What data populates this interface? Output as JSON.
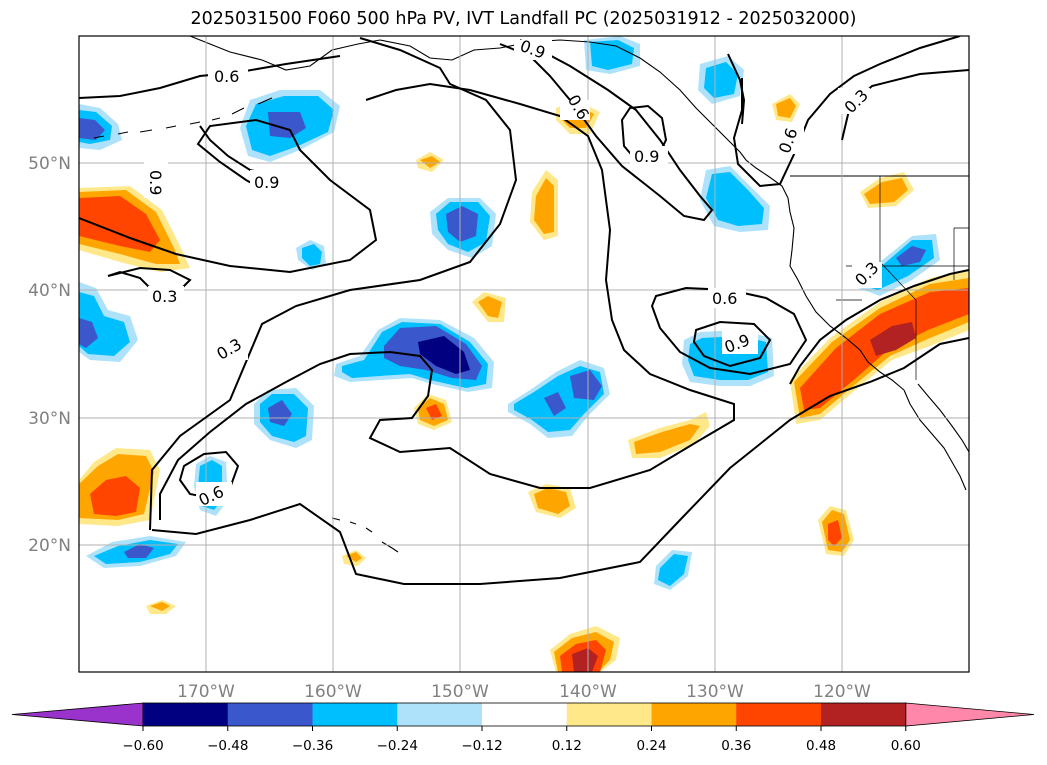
{
  "title": "2025031500 F060 500 hPa PV, IVT Landfall PC (2025031912 - 2025032000)",
  "map": {
    "projection": "PlateCarree",
    "extent": {
      "lon_min": -180,
      "lon_max": -110,
      "lat_min": 10,
      "lat_max": 60
    },
    "gridlines": true,
    "lat_ticks": [
      {
        "value": 20,
        "label": "20°N"
      },
      {
        "value": 30,
        "label": "30°N"
      },
      {
        "value": 40,
        "label": "40°N"
      },
      {
        "value": 50,
        "label": "50°N"
      }
    ],
    "lon_ticks": [
      {
        "value": -170,
        "label": "170°W"
      },
      {
        "value": -160,
        "label": "160°W"
      },
      {
        "value": -150,
        "label": "150°W"
      },
      {
        "value": -140,
        "label": "140°W"
      },
      {
        "value": -130,
        "label": "130°W"
      },
      {
        "value": -120,
        "label": "120°W"
      }
    ]
  },
  "contour_labels": [
    "0.3",
    "0.6",
    "0.9"
  ],
  "colorbar": {
    "extend": "both",
    "levels": [
      -0.6,
      -0.48,
      -0.36,
      -0.24,
      -0.12,
      0.12,
      0.24,
      0.36,
      0.48,
      0.6
    ],
    "tick_labels": [
      "−0.60",
      "−0.48",
      "−0.36",
      "−0.24",
      "−0.12",
      "0.12",
      "0.24",
      "0.36",
      "0.48",
      "0.60"
    ],
    "colors": [
      "#9933cc",
      "#000080",
      "#3a57cc",
      "#00bfff",
      "#aee2fb",
      "#ffffff",
      "#ffe88a",
      "#ffa500",
      "#ff4500",
      "#b22222",
      "#ff88aa"
    ]
  },
  "shading_colors": {
    "neg_024": "#aee2fb",
    "neg_036": "#00bfff",
    "neg_048": "#3a57cc",
    "neg_060": "#000080",
    "pos_012": "#ffe88a",
    "pos_024": "#ffa500",
    "pos_036": "#ff4500",
    "pos_048": "#b22222"
  }
}
